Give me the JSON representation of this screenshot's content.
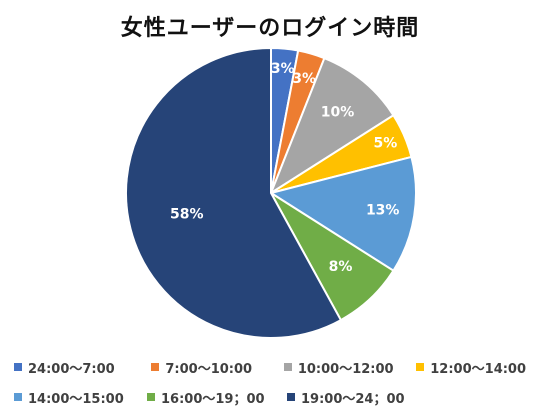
{
  "chart_data": {
    "type": "pie",
    "title": "女性ユーザーのログイン時間",
    "categories": [
      "24:00〜7:00",
      "7:00〜10:00",
      "10:00〜12:00",
      "12:00〜14:00",
      "14:00〜15:00",
      "16:00〜19；00",
      "19:00〜24；00"
    ],
    "values": [
      3,
      3,
      10,
      5,
      13,
      8,
      58
    ],
    "labels": [
      "3%",
      "3%",
      "10%",
      "5%",
      "13%",
      "8%",
      "58%"
    ],
    "colors": [
      "#4472c4",
      "#ed7d31",
      "#a5a5a5",
      "#ffc000",
      "#5b9bd5",
      "#70ad47",
      "#264478"
    ],
    "legend": "bottom",
    "label_color": "#ffffff"
  }
}
